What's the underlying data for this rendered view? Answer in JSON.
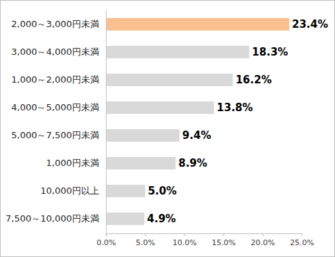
{
  "chart_data": {
    "type": "bar",
    "orientation": "horizontal",
    "categories": [
      "2,000～3,000円未満",
      "3,000～4,000円未満",
      "1,000～2,000円未満",
      "4,000～5,000円未満",
      "5,000～7,500円未満",
      "1,000円未満",
      "10,000円以上",
      "7,500～10,000円未満"
    ],
    "values": [
      23.4,
      18.3,
      16.2,
      13.8,
      9.4,
      8.9,
      5.0,
      4.9
    ],
    "value_labels": [
      "23.4%",
      "18.3%",
      "16.2%",
      "13.8%",
      "9.4%",
      "8.9%",
      "5.0%",
      "4.9%"
    ],
    "colors": [
      "#fac090",
      "#d9d9d9",
      "#d9d9d9",
      "#d9d9d9",
      "#d9d9d9",
      "#d9d9d9",
      "#d9d9d9",
      "#d9d9d9"
    ],
    "data_labels": true,
    "grid": false,
    "xlim": [
      0,
      25
    ],
    "xticks": [
      {
        "value": 0,
        "label": "0.0%"
      },
      {
        "value": 5,
        "label": "5.0%"
      },
      {
        "value": 10,
        "label": "10.0%"
      },
      {
        "value": 15,
        "label": "15.0%"
      },
      {
        "value": 20,
        "label": "20.0%"
      },
      {
        "value": 25,
        "label": "25.0%"
      }
    ]
  }
}
